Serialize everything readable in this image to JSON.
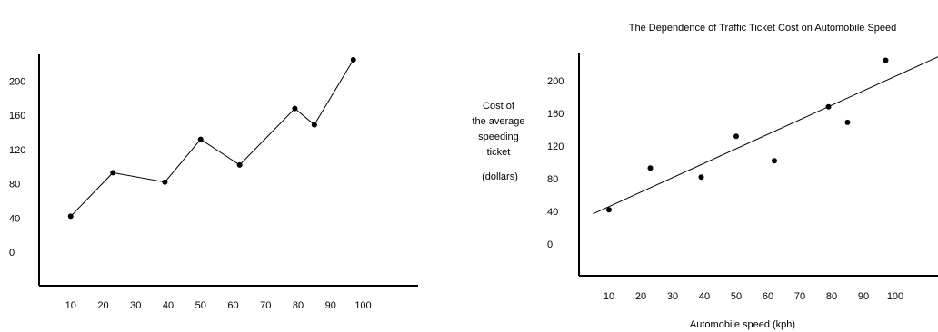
{
  "chart_data": [
    {
      "type": "line",
      "title": "",
      "xlabel": "",
      "ylabel": "",
      "x_ticks": [
        10,
        20,
        30,
        40,
        50,
        60,
        70,
        80,
        90,
        100
      ],
      "y_ticks": [
        0,
        40,
        80,
        120,
        160,
        200
      ],
      "xlim": [
        0,
        112
      ],
      "ylim": [
        -30,
        230
      ],
      "grid": false,
      "legend": "none",
      "series": [
        {
          "points": [
            {
              "x": 10,
              "y": 42
            },
            {
              "x": 23,
              "y": 93
            },
            {
              "x": 39,
              "y": 82
            },
            {
              "x": 50,
              "y": 132
            },
            {
              "x": 62,
              "y": 102
            },
            {
              "x": 79,
              "y": 168
            },
            {
              "x": 85,
              "y": 149
            },
            {
              "x": 97,
              "y": 225
            }
          ]
        }
      ]
    },
    {
      "type": "scatter",
      "title": "The Dependence of Traffic Ticket Cost on Automobile Speed",
      "xlabel": "Automobile speed (kph)",
      "ylabel_lines": [
        "Cost of",
        "the average",
        "speeding",
        "ticket",
        "(dollars)"
      ],
      "x_ticks": [
        10,
        20,
        30,
        40,
        50,
        60,
        70,
        80,
        90,
        100
      ],
      "y_ticks": [
        0,
        40,
        80,
        120,
        160,
        200
      ],
      "xlim": [
        0,
        112
      ],
      "ylim": [
        -30,
        230
      ],
      "grid": false,
      "legend": "none",
      "series": [
        {
          "points": [
            {
              "x": 10,
              "y": 42
            },
            {
              "x": 23,
              "y": 93
            },
            {
              "x": 39,
              "y": 82
            },
            {
              "x": 50,
              "y": 132
            },
            {
              "x": 62,
              "y": 102
            },
            {
              "x": 79,
              "y": 168
            },
            {
              "x": 85,
              "y": 149
            },
            {
              "x": 97,
              "y": 225
            }
          ]
        }
      ],
      "trend_line": [
        {
          "x": 5,
          "y": 37
        },
        {
          "x": 115,
          "y": 232
        }
      ]
    }
  ]
}
